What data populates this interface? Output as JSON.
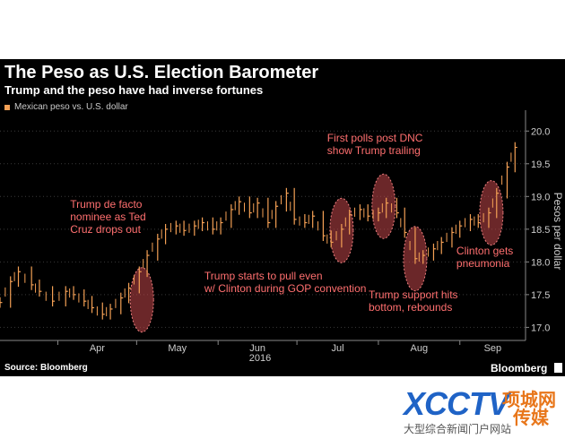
{
  "header": {
    "title": "The Peso as U.S. Election Barometer",
    "subtitle": "Trump and the peso have had inverse fortunes"
  },
  "footer": {
    "source": "Source: Bloomberg",
    "brand": "Bloomberg"
  },
  "watermark": {
    "main": "XCCTV",
    "tag_top": "项城网",
    "tag_bottom": "传媒",
    "sub": "大型综合新闻门户网站"
  },
  "colors": {
    "background": "#000000",
    "series": "#f4a055",
    "annotation_text": "#ff6f6f",
    "highlight_fill": "#c2474a",
    "axis_text": "#cccccc"
  },
  "chart_data": {
    "type": "line",
    "title": "The Peso as U.S. Election Barometer",
    "subtitle": "Trump and the peso have had inverse fortunes",
    "legend": [
      "Mexican peso vs. U.S. dollar"
    ],
    "legend_position": "top-left",
    "ylabel": "Pesos per dollar",
    "y_axis_side": "right",
    "ylim": [
      16.8,
      20.25
    ],
    "yticks": [
      17.0,
      17.5,
      18.0,
      18.5,
      19.0,
      19.5,
      20.0
    ],
    "ytick_labels": [
      "17.0",
      "17.5",
      "18.0",
      "18.5",
      "19.0",
      "19.5",
      "20.0"
    ],
    "xlim": [
      "2016-03-10",
      "2016-09-26"
    ],
    "x_tick_labels": [
      "Apr",
      "May",
      "Jun",
      "Jul",
      "Aug",
      "Sep"
    ],
    "x_ticks": [
      "2016-04-01",
      "2016-05-01",
      "2016-06-01",
      "2016-07-01",
      "2016-08-01",
      "2016-09-01"
    ],
    "x_year_label": "2016",
    "grid": true,
    "series": [
      {
        "name": "Mexican peso vs. U.S. dollar",
        "style": "ohlc-ticks",
        "color": "#f4a055",
        "x": [
          "2016-03-10",
          "2016-03-14",
          "2016-03-17",
          "2016-03-22",
          "2016-03-25",
          "2016-03-30",
          "2016-04-04",
          "2016-04-07",
          "2016-04-11",
          "2016-04-14",
          "2016-04-18",
          "2016-04-21",
          "2016-04-25",
          "2016-04-28",
          "2016-05-02",
          "2016-05-05",
          "2016-05-09",
          "2016-05-12",
          "2016-05-16",
          "2016-05-19",
          "2016-05-23",
          "2016-05-26",
          "2016-05-30",
          "2016-06-02",
          "2016-06-06",
          "2016-06-09",
          "2016-06-13",
          "2016-06-16",
          "2016-06-20",
          "2016-06-23",
          "2016-06-27",
          "2016-06-30",
          "2016-07-04",
          "2016-07-07",
          "2016-07-11",
          "2016-07-14",
          "2016-07-18",
          "2016-07-21",
          "2016-07-25",
          "2016-07-28",
          "2016-08-01",
          "2016-08-04",
          "2016-08-08",
          "2016-08-11",
          "2016-08-15",
          "2016-08-18",
          "2016-08-22",
          "2016-08-25",
          "2016-08-29",
          "2016-09-01",
          "2016-09-05",
          "2016-09-08",
          "2016-09-12",
          "2016-09-15",
          "2016-09-19",
          "2016-09-22"
        ],
        "values": [
          17.38,
          17.7,
          17.85,
          17.65,
          17.55,
          17.4,
          17.55,
          17.5,
          17.4,
          17.3,
          17.2,
          17.28,
          17.45,
          17.6,
          17.85,
          18.1,
          18.35,
          18.5,
          18.55,
          18.48,
          18.55,
          18.6,
          18.5,
          18.6,
          18.8,
          18.92,
          18.75,
          18.9,
          18.6,
          18.85,
          19.05,
          18.65,
          18.6,
          18.7,
          18.4,
          18.3,
          18.5,
          18.72,
          18.8,
          18.7,
          18.75,
          18.9,
          18.75,
          18.45,
          18.05,
          18.1,
          18.2,
          18.3,
          18.45,
          18.55,
          18.65,
          18.6,
          18.75,
          19.05,
          19.45,
          19.75
        ]
      }
    ],
    "annotations": [
      {
        "text_lines": [
          "Trump de facto",
          "nominee as Ted",
          "Cruz drops out"
        ],
        "x": "2016-05-03",
        "y": 17.42
      },
      {
        "text_lines": [
          "Trump starts to pull even",
          "w/ Clinton during GOP convention"
        ],
        "x": "2016-07-18",
        "y": 18.48
      },
      {
        "text_lines": [
          "First polls post DNC",
          "show Trump trailing"
        ],
        "x": "2016-08-03",
        "y": 18.85
      },
      {
        "text_lines": [
          "Trump support hits",
          "bottom, rebounds"
        ],
        "x": "2016-08-15",
        "y": 18.05
      },
      {
        "text_lines": [
          "Clinton gets",
          "pneumonia"
        ],
        "x": "2016-09-13",
        "y": 18.75
      }
    ]
  }
}
